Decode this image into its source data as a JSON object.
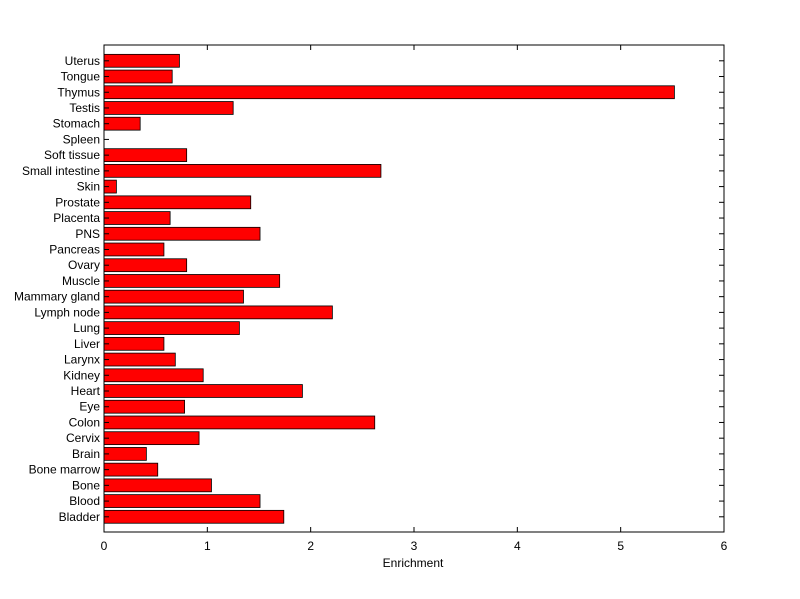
{
  "chart_data": {
    "type": "bar",
    "orientation": "horizontal",
    "categories": [
      "Bladder",
      "Blood",
      "Bone",
      "Bone marrow",
      "Brain",
      "Cervix",
      "Colon",
      "Eye",
      "Heart",
      "Kidney",
      "Larynx",
      "Liver",
      "Lung",
      "Lymph node",
      "Mammary gland",
      "Muscle",
      "Ovary",
      "Pancreas",
      "PNS",
      "Placenta",
      "Prostate",
      "Skin",
      "Small intestine",
      "Soft tissue",
      "Spleen",
      "Stomach",
      "Testis",
      "Thymus",
      "Tongue",
      "Uterus"
    ],
    "values": [
      1.74,
      1.51,
      1.04,
      0.52,
      0.41,
      0.92,
      2.62,
      0.78,
      1.92,
      0.96,
      0.69,
      0.58,
      1.31,
      2.21,
      1.35,
      1.7,
      0.8,
      0.58,
      1.51,
      0.64,
      1.42,
      0.12,
      2.68,
      0.8,
      0.0,
      0.35,
      1.25,
      5.52,
      0.66,
      0.73
    ],
    "title": "",
    "xlabel": "Enrichment",
    "ylabel": "",
    "xlim": [
      0,
      6
    ],
    "xticks": [
      0,
      1,
      2,
      3,
      4,
      5,
      6
    ],
    "bar_color": "#ff0000",
    "edge_color": "#000000",
    "grid": false,
    "legend": "none"
  }
}
